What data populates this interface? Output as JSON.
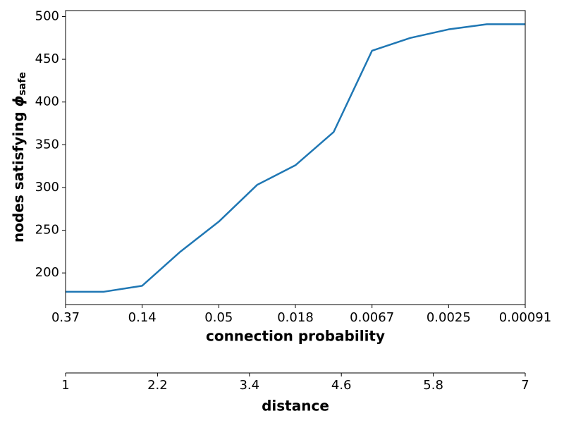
{
  "chart_data": {
    "type": "line",
    "xlabel": "connection probability",
    "ylabel": "nodes satisfying ",
    "ylabel_symbol": "ϕ",
    "ylabel_subscript": "safe",
    "x2label": "distance",
    "x": [
      1,
      1.5,
      2,
      2.5,
      3,
      3.5,
      4,
      4.5,
      5,
      5.5,
      6,
      6.5,
      7
    ],
    "series": [
      {
        "color": "#1f77b4",
        "values": [
          178,
          178,
          185,
          225,
          260,
          303,
          326,
          365,
          460,
          475,
          485,
          491,
          491
        ]
      }
    ],
    "xlim": [
      1,
      7
    ],
    "xticks": [
      {
        "value": 1,
        "label": "0.37"
      },
      {
        "value": 2,
        "label": "0.14"
      },
      {
        "value": 3,
        "label": "0.05"
      },
      {
        "value": 4,
        "label": "0.018"
      },
      {
        "value": 5,
        "label": "0.0067"
      },
      {
        "value": 6,
        "label": "0.0025"
      },
      {
        "value": 7,
        "label": "0.00091"
      }
    ],
    "x2lim": [
      1,
      7
    ],
    "x2ticks": [
      1,
      2.2,
      3.4,
      4.6,
      5.8,
      7
    ],
    "ylim": [
      163,
      507
    ],
    "yticks": [
      200,
      250,
      300,
      350,
      400,
      450,
      500
    ],
    "grid": false
  }
}
